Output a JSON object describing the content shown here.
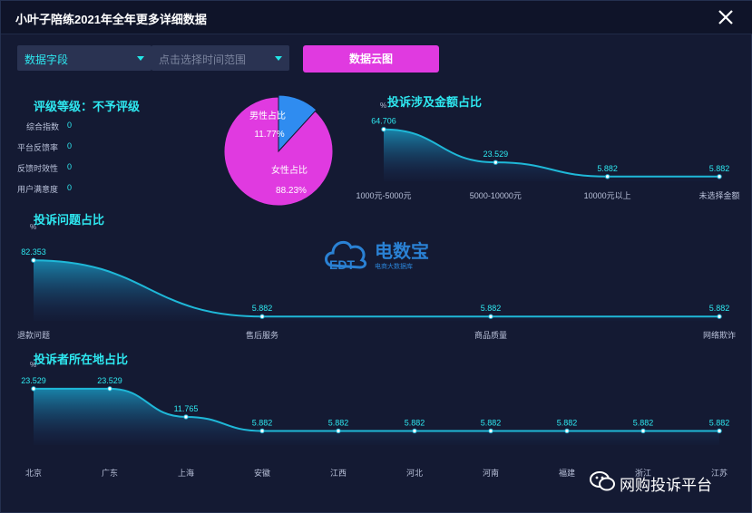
{
  "window": {
    "title": "小叶子陪练2021年全年更多详细数据"
  },
  "filters": {
    "field_select": "数据字段",
    "time_range_placeholder": "点击选择时间范围",
    "cloud_button": "数据云图"
  },
  "rating": {
    "title": "评级等级：不予评级",
    "metrics": [
      {
        "label": "综合指数",
        "value": "0"
      },
      {
        "label": "平台反馈率",
        "value": "0"
      },
      {
        "label": "反馈时效性",
        "value": "0"
      },
      {
        "label": "用户满意度",
        "value": "0"
      }
    ]
  },
  "watermark": {
    "brand_cn": "电数宝",
    "logo_text": "EDT",
    "tagline": "电商大数据库"
  },
  "wechat": {
    "account": "网购投诉平台"
  },
  "colors": {
    "accent_cyan": "#2ee8f0",
    "button_pink": "#e03ae0",
    "pie_female": "#e03ae0",
    "pie_male": "#2f8cf0",
    "line": "#1fb8d8"
  },
  "chart_data": [
    {
      "id": "gender",
      "type": "pie",
      "slices": [
        {
          "label": "男性占比",
          "value": 11.77,
          "value_text": "11.77%",
          "color": "#2f8cf0"
        },
        {
          "label": "女性占比",
          "value": 88.23,
          "value_text": "88.23%",
          "color": "#e03ae0"
        }
      ]
    },
    {
      "id": "amount",
      "type": "area",
      "title": "投诉涉及金额占比",
      "unit": "%",
      "categories": [
        "1000元-5000元",
        "5000-10000元",
        "10000元以上",
        "未选择金额"
      ],
      "values": [
        64.706,
        23.529,
        5.882,
        5.882
      ],
      "value_labels": [
        "64.706",
        "23.529",
        "5.882",
        "5.882"
      ],
      "ylim": [
        0,
        70
      ]
    },
    {
      "id": "issues",
      "type": "area",
      "title": "投诉问题占比",
      "unit": "%",
      "categories": [
        "退款问题",
        "售后服务",
        "商品质量",
        "网络欺诈"
      ],
      "values": [
        82.353,
        5.882,
        5.882,
        5.882
      ],
      "value_labels": [
        "82.353",
        "5.882",
        "5.882",
        "5.882"
      ],
      "ylim": [
        0,
        90
      ]
    },
    {
      "id": "region",
      "type": "area",
      "title": "投诉者所在地占比",
      "unit": "%",
      "categories": [
        "北京",
        "广东",
        "上海",
        "安徽",
        "江西",
        "河北",
        "河南",
        "福建",
        "浙江",
        "江苏"
      ],
      "values": [
        23.529,
        23.529,
        11.765,
        5.882,
        5.882,
        5.882,
        5.882,
        5.882,
        5.882,
        5.882
      ],
      "value_labels": [
        "23.529",
        "23.529",
        "11.765",
        "5.882",
        "5.882",
        "5.882",
        "5.882",
        "5.882",
        "5.882",
        "5.882"
      ],
      "ylim": [
        0,
        25
      ]
    }
  ]
}
